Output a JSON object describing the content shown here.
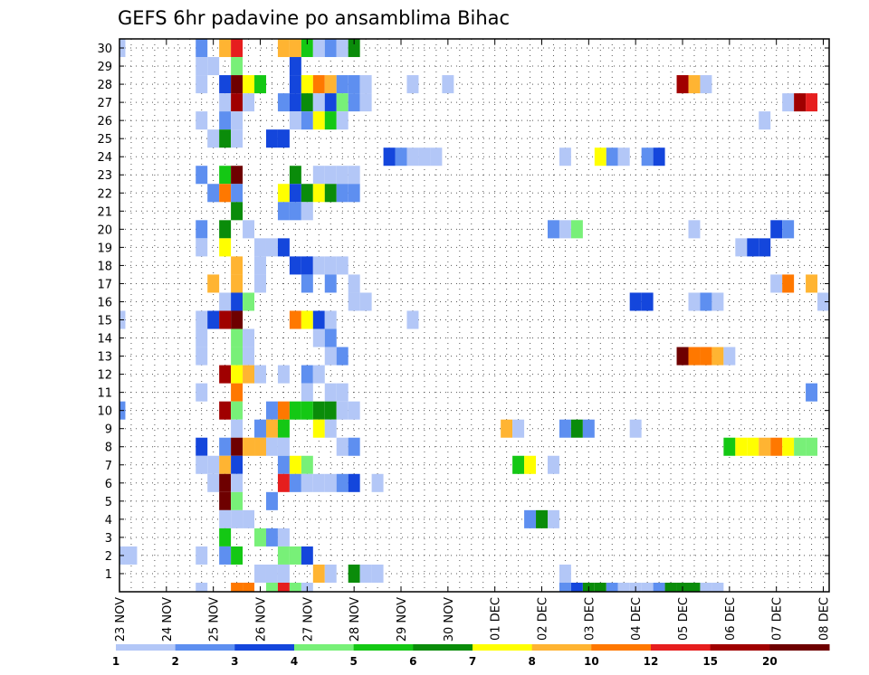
{
  "chart_data": {
    "type": "heatmap",
    "title": "GEFS 6hr padavine po ansamblima Bihac",
    "xlabel": "",
    "ylabel": "",
    "grid": true,
    "x_tick_labels": [
      "23 NOV",
      "24 NOV",
      "25 NOV",
      "26 NOV",
      "27 NOV",
      "28 NOV",
      "29 NOV",
      "30 NOV",
      "01 DEC",
      "02 DEC",
      "03 DEC",
      "04 DEC",
      "05 DEC",
      "06 DEC",
      "07 DEC",
      "08 DEC"
    ],
    "y_tick_labels": [
      "1",
      "2",
      "3",
      "4",
      "5",
      "6",
      "7",
      "8",
      "9",
      "10",
      "11",
      "12",
      "13",
      "14",
      "15",
      "16",
      "17",
      "18",
      "19",
      "20",
      "21",
      "22",
      "23",
      "24",
      "25",
      "26",
      "27",
      "28",
      "29",
      "30"
    ],
    "ylim": [
      0,
      30
    ],
    "x_steps": 61,
    "legend": {
      "placement": "bottom",
      "labels": [
        "1",
        "2",
        "3",
        "4",
        "5",
        "6",
        "7",
        "8",
        "10",
        "12",
        "15",
        "20"
      ],
      "colors": [
        "#b3c7f7",
        "#5e8ff0",
        "#1446dc",
        "#78f078",
        "#14c814",
        "#0a8c0a",
        "#ffff00",
        "#ffb432",
        "#ff7800",
        "#e61e1e",
        "#a00000",
        "#6e0000"
      ]
    },
    "cells_note_format": "[member, step(6h from 23 NOV 00Z), level index into legend.colors]",
    "cells": [
      [
        30,
        0,
        0
      ],
      [
        30,
        7,
        1
      ],
      [
        30,
        9,
        7
      ],
      [
        30,
        10,
        9
      ],
      [
        30,
        14,
        7
      ],
      [
        30,
        15,
        7
      ],
      [
        30,
        16,
        4
      ],
      [
        30,
        17,
        0
      ],
      [
        30,
        18,
        1
      ],
      [
        30,
        19,
        0
      ],
      [
        30,
        20,
        5
      ],
      [
        29,
        7,
        0
      ],
      [
        29,
        8,
        0
      ],
      [
        29,
        10,
        3
      ],
      [
        29,
        15,
        2
      ],
      [
        28,
        7,
        0
      ],
      [
        28,
        9,
        2
      ],
      [
        28,
        10,
        11
      ],
      [
        28,
        11,
        6
      ],
      [
        28,
        12,
        4
      ],
      [
        28,
        15,
        2
      ],
      [
        28,
        16,
        6
      ],
      [
        28,
        17,
        8
      ],
      [
        28,
        18,
        7
      ],
      [
        28,
        19,
        1
      ],
      [
        28,
        20,
        1
      ],
      [
        28,
        21,
        0
      ],
      [
        28,
        25,
        0
      ],
      [
        28,
        28,
        0
      ],
      [
        28,
        48,
        10
      ],
      [
        28,
        49,
        7
      ],
      [
        28,
        50,
        0
      ],
      [
        27,
        9,
        0
      ],
      [
        27,
        10,
        10
      ],
      [
        27,
        11,
        0
      ],
      [
        27,
        14,
        1
      ],
      [
        27,
        15,
        2
      ],
      [
        27,
        16,
        5
      ],
      [
        27,
        17,
        0
      ],
      [
        27,
        18,
        2
      ],
      [
        27,
        19,
        3
      ],
      [
        27,
        20,
        1
      ],
      [
        27,
        21,
        0
      ],
      [
        27,
        57,
        0
      ],
      [
        27,
        58,
        10
      ],
      [
        27,
        59,
        9
      ],
      [
        26,
        7,
        0
      ],
      [
        26,
        9,
        1
      ],
      [
        26,
        10,
        0
      ],
      [
        26,
        15,
        0
      ],
      [
        26,
        16,
        1
      ],
      [
        26,
        17,
        6
      ],
      [
        26,
        18,
        4
      ],
      [
        26,
        19,
        0
      ],
      [
        26,
        55,
        0
      ],
      [
        25,
        8,
        0
      ],
      [
        25,
        9,
        5
      ],
      [
        25,
        10,
        0
      ],
      [
        25,
        13,
        2
      ],
      [
        25,
        14,
        2
      ],
      [
        24,
        23,
        2
      ],
      [
        24,
        24,
        1
      ],
      [
        24,
        25,
        0
      ],
      [
        24,
        26,
        0
      ],
      [
        24,
        27,
        0
      ],
      [
        24,
        38,
        0
      ],
      [
        24,
        41,
        6
      ],
      [
        24,
        42,
        1
      ],
      [
        24,
        43,
        0
      ],
      [
        24,
        45,
        1
      ],
      [
        24,
        46,
        2
      ],
      [
        23,
        7,
        1
      ],
      [
        23,
        9,
        4
      ],
      [
        23,
        10,
        11
      ],
      [
        23,
        15,
        5
      ],
      [
        23,
        17,
        0
      ],
      [
        23,
        18,
        0
      ],
      [
        23,
        19,
        0
      ],
      [
        23,
        20,
        0
      ],
      [
        22,
        8,
        1
      ],
      [
        22,
        9,
        8
      ],
      [
        22,
        10,
        1
      ],
      [
        22,
        14,
        6
      ],
      [
        22,
        15,
        2
      ],
      [
        22,
        16,
        5
      ],
      [
        22,
        17,
        6
      ],
      [
        22,
        18,
        5
      ],
      [
        22,
        19,
        1
      ],
      [
        22,
        20,
        1
      ],
      [
        21,
        10,
        5
      ],
      [
        21,
        14,
        1
      ],
      [
        21,
        15,
        1
      ],
      [
        21,
        16,
        0
      ],
      [
        20,
        7,
        1
      ],
      [
        20,
        9,
        5
      ],
      [
        20,
        11,
        0
      ],
      [
        20,
        37,
        1
      ],
      [
        20,
        38,
        0
      ],
      [
        20,
        39,
        3
      ],
      [
        20,
        49,
        0
      ],
      [
        20,
        56,
        2
      ],
      [
        20,
        57,
        1
      ],
      [
        19,
        7,
        0
      ],
      [
        19,
        9,
        6
      ],
      [
        19,
        12,
        0
      ],
      [
        19,
        13,
        0
      ],
      [
        19,
        14,
        2
      ],
      [
        19,
        53,
        0
      ],
      [
        19,
        54,
        2
      ],
      [
        19,
        55,
        2
      ],
      [
        18,
        10,
        7
      ],
      [
        18,
        12,
        0
      ],
      [
        18,
        15,
        2
      ],
      [
        18,
        16,
        2
      ],
      [
        18,
        17,
        0
      ],
      [
        18,
        18,
        0
      ],
      [
        18,
        19,
        0
      ],
      [
        17,
        8,
        7
      ],
      [
        17,
        10,
        7
      ],
      [
        17,
        12,
        0
      ],
      [
        17,
        16,
        1
      ],
      [
        17,
        18,
        1
      ],
      [
        17,
        20,
        0
      ],
      [
        17,
        56,
        0
      ],
      [
        17,
        57,
        8
      ],
      [
        17,
        59,
        7
      ],
      [
        16,
        9,
        0
      ],
      [
        16,
        10,
        2
      ],
      [
        16,
        11,
        3
      ],
      [
        16,
        20,
        0
      ],
      [
        16,
        21,
        0
      ],
      [
        16,
        44,
        2
      ],
      [
        16,
        45,
        2
      ],
      [
        16,
        49,
        0
      ],
      [
        16,
        50,
        1
      ],
      [
        16,
        51,
        0
      ],
      [
        16,
        60,
        0
      ],
      [
        15,
        0,
        0
      ],
      [
        15,
        7,
        0
      ],
      [
        15,
        8,
        2
      ],
      [
        15,
        9,
        10
      ],
      [
        15,
        10,
        11
      ],
      [
        15,
        15,
        8
      ],
      [
        15,
        16,
        6
      ],
      [
        15,
        17,
        2
      ],
      [
        15,
        18,
        0
      ],
      [
        15,
        25,
        0
      ],
      [
        14,
        7,
        0
      ],
      [
        14,
        10,
        3
      ],
      [
        14,
        11,
        0
      ],
      [
        14,
        17,
        0
      ],
      [
        14,
        18,
        1
      ],
      [
        13,
        7,
        0
      ],
      [
        13,
        10,
        3
      ],
      [
        13,
        11,
        0
      ],
      [
        13,
        18,
        0
      ],
      [
        13,
        19,
        1
      ],
      [
        13,
        48,
        11
      ],
      [
        13,
        49,
        8
      ],
      [
        13,
        50,
        8
      ],
      [
        13,
        51,
        7
      ],
      [
        13,
        52,
        0
      ],
      [
        12,
        9,
        10
      ],
      [
        12,
        10,
        6
      ],
      [
        12,
        11,
        7
      ],
      [
        12,
        12,
        0
      ],
      [
        12,
        14,
        0
      ],
      [
        12,
        16,
        1
      ],
      [
        12,
        17,
        0
      ],
      [
        11,
        7,
        0
      ],
      [
        11,
        10,
        8
      ],
      [
        11,
        16,
        0
      ],
      [
        11,
        18,
        0
      ],
      [
        11,
        19,
        0
      ],
      [
        11,
        59,
        1
      ],
      [
        10,
        0,
        1
      ],
      [
        10,
        9,
        10
      ],
      [
        10,
        10,
        3
      ],
      [
        10,
        13,
        1
      ],
      [
        10,
        14,
        8
      ],
      [
        10,
        15,
        4
      ],
      [
        10,
        16,
        4
      ],
      [
        10,
        17,
        5
      ],
      [
        10,
        18,
        5
      ],
      [
        10,
        19,
        0
      ],
      [
        10,
        20,
        0
      ],
      [
        9,
        10,
        0
      ],
      [
        9,
        12,
        1
      ],
      [
        9,
        13,
        7
      ],
      [
        9,
        14,
        4
      ],
      [
        9,
        17,
        6
      ],
      [
        9,
        18,
        0
      ],
      [
        9,
        33,
        7
      ],
      [
        9,
        34,
        0
      ],
      [
        9,
        38,
        1
      ],
      [
        9,
        39,
        5
      ],
      [
        9,
        40,
        1
      ],
      [
        9,
        44,
        0
      ],
      [
        8,
        7,
        2
      ],
      [
        8,
        9,
        1
      ],
      [
        8,
        10,
        11
      ],
      [
        8,
        11,
        7
      ],
      [
        8,
        12,
        7
      ],
      [
        8,
        13,
        0
      ],
      [
        8,
        14,
        0
      ],
      [
        8,
        19,
        0
      ],
      [
        8,
        20,
        1
      ],
      [
        8,
        52,
        4
      ],
      [
        8,
        53,
        6
      ],
      [
        8,
        54,
        6
      ],
      [
        8,
        55,
        7
      ],
      [
        8,
        56,
        8
      ],
      [
        8,
        57,
        6
      ],
      [
        8,
        58,
        3
      ],
      [
        8,
        59,
        3
      ],
      [
        7,
        7,
        0
      ],
      [
        7,
        8,
        0
      ],
      [
        7,
        9,
        7
      ],
      [
        7,
        10,
        2
      ],
      [
        7,
        14,
        1
      ],
      [
        7,
        15,
        6
      ],
      [
        7,
        16,
        3
      ],
      [
        7,
        34,
        4
      ],
      [
        7,
        35,
        6
      ],
      [
        7,
        37,
        0
      ],
      [
        6,
        8,
        0
      ],
      [
        6,
        9,
        11
      ],
      [
        6,
        10,
        0
      ],
      [
        6,
        14,
        9
      ],
      [
        6,
        15,
        1
      ],
      [
        6,
        16,
        0
      ],
      [
        6,
        17,
        0
      ],
      [
        6,
        18,
        0
      ],
      [
        6,
        19,
        1
      ],
      [
        6,
        20,
        2
      ],
      [
        6,
        22,
        0
      ],
      [
        5,
        9,
        11
      ],
      [
        5,
        10,
        3
      ],
      [
        5,
        13,
        1
      ],
      [
        4,
        9,
        0
      ],
      [
        4,
        10,
        0
      ],
      [
        4,
        11,
        0
      ],
      [
        4,
        35,
        1
      ],
      [
        4,
        36,
        5
      ],
      [
        4,
        37,
        0
      ],
      [
        3,
        9,
        4
      ],
      [
        3,
        12,
        3
      ],
      [
        3,
        13,
        1
      ],
      [
        3,
        14,
        0
      ],
      [
        2,
        0,
        0
      ],
      [
        2,
        1,
        0
      ],
      [
        2,
        7,
        0
      ],
      [
        2,
        9,
        1
      ],
      [
        2,
        10,
        4
      ],
      [
        2,
        14,
        3
      ],
      [
        2,
        15,
        3
      ],
      [
        2,
        16,
        2
      ],
      [
        1,
        12,
        0
      ],
      [
        1,
        13,
        0
      ],
      [
        1,
        14,
        0
      ],
      [
        1,
        17,
        7
      ],
      [
        1,
        18,
        0
      ],
      [
        1,
        20,
        5
      ],
      [
        1,
        21,
        0
      ],
      [
        1,
        22,
        0
      ],
      [
        1,
        38,
        0
      ],
      [
        0,
        7,
        0
      ],
      [
        0,
        10,
        8
      ],
      [
        0,
        11,
        8
      ],
      [
        0,
        13,
        3
      ],
      [
        0,
        14,
        9
      ],
      [
        0,
        15,
        3
      ],
      [
        0,
        16,
        0
      ],
      [
        0,
        38,
        1
      ],
      [
        0,
        39,
        2
      ],
      [
        0,
        40,
        5
      ],
      [
        0,
        41,
        5
      ],
      [
        0,
        42,
        1
      ],
      [
        0,
        43,
        0
      ],
      [
        0,
        44,
        0
      ],
      [
        0,
        45,
        0
      ],
      [
        0,
        46,
        1
      ],
      [
        0,
        47,
        5
      ],
      [
        0,
        48,
        5
      ],
      [
        0,
        49,
        5
      ],
      [
        0,
        50,
        0
      ],
      [
        0,
        51,
        0
      ]
    ]
  }
}
